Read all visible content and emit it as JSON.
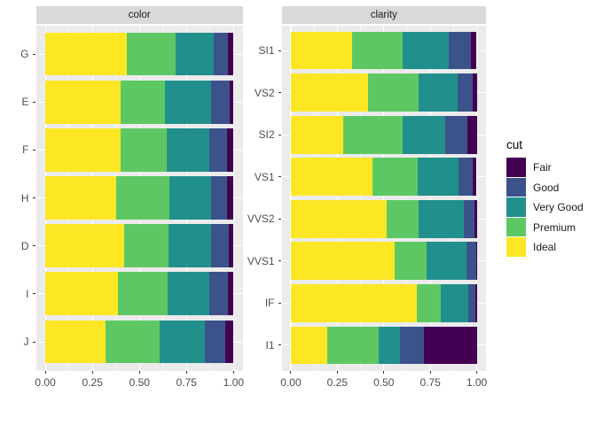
{
  "chart_data": {
    "type": "bar",
    "variant": "horizontal_stacked_fill",
    "x_axis": {
      "tick_values": [
        0,
        0.25,
        0.5,
        0.75,
        1
      ],
      "tick_labels": [
        "0.00",
        "0.25",
        "0.50",
        "0.75",
        "1.00"
      ],
      "range": [
        -0.05,
        1.05
      ],
      "grid": "on",
      "minor_tick_values": [
        0.125,
        0.375,
        0.625,
        0.875
      ]
    },
    "stack_order_left_to_right": [
      "Ideal",
      "Premium",
      "Very Good",
      "Good",
      "Fair"
    ],
    "legend": {
      "title": "cut",
      "position": "right",
      "entries": [
        {
          "label": "Fair",
          "color": "#440154"
        },
        {
          "label": "Good",
          "color": "#3B528B"
        },
        {
          "label": "Very Good",
          "color": "#21908C"
        },
        {
          "label": "Premium",
          "color": "#5DC863"
        },
        {
          "label": "Ideal",
          "color": "#FDE725"
        }
      ]
    },
    "facets": [
      {
        "title": "color",
        "categories": [
          "G",
          "E",
          "F",
          "H",
          "D",
          "I",
          "J"
        ],
        "series": {
          "G": {
            "Ideal": 0.4325,
            "Premium": 0.259,
            "Very Good": 0.2036,
            "Good": 0.0771,
            "Fair": 0.0278
          },
          "E": {
            "Ideal": 0.3984,
            "Premium": 0.2385,
            "Very Good": 0.245,
            "Good": 0.0952,
            "Fair": 0.0229
          },
          "F": {
            "Ideal": 0.401,
            "Premium": 0.2443,
            "Very Good": 0.2268,
            "Good": 0.0953,
            "Fair": 0.0327
          },
          "H": {
            "Ideal": 0.3751,
            "Premium": 0.2842,
            "Very Good": 0.2197,
            "Good": 0.0845,
            "Fair": 0.0365
          },
          "D": {
            "Ideal": 0.4183,
            "Premium": 0.2366,
            "Very Good": 0.2233,
            "Good": 0.0977,
            "Fair": 0.0241
          },
          "I": {
            "Ideal": 0.386,
            "Premium": 0.2634,
            "Very Good": 0.2221,
            "Good": 0.0963,
            "Fair": 0.0323
          },
          "J": {
            "Ideal": 0.3191,
            "Premium": 0.2877,
            "Very Good": 0.2414,
            "Good": 0.1093,
            "Fair": 0.0424
          }
        }
      },
      {
        "title": "clarity",
        "categories": [
          "SI1",
          "VS2",
          "SI2",
          "VS1",
          "VVS2",
          "VVS1",
          "IF",
          "I1"
        ],
        "series": {
          "SI1": {
            "Ideal": 0.3277,
            "Premium": 0.2736,
            "Very Good": 0.248,
            "Good": 0.1194,
            "Fair": 0.0312
          },
          "VS2": {
            "Ideal": 0.4137,
            "Premium": 0.2739,
            "Very Good": 0.2114,
            "Good": 0.0798,
            "Fair": 0.0213
          },
          "SI2": {
            "Ideal": 0.2826,
            "Premium": 0.3208,
            "Very Good": 0.2284,
            "Good": 0.1176,
            "Fair": 0.0507
          },
          "VS1": {
            "Ideal": 0.4392,
            "Premium": 0.2434,
            "Very Good": 0.2172,
            "Good": 0.0793,
            "Fair": 0.0208
          },
          "VVS2": {
            "Ideal": 0.5144,
            "Premium": 0.1717,
            "Very Good": 0.2438,
            "Good": 0.0565,
            "Fair": 0.0136
          },
          "VVS1": {
            "Ideal": 0.5601,
            "Premium": 0.1685,
            "Very Good": 0.2159,
            "Good": 0.0509,
            "Fair": 0.0047
          },
          "IF": {
            "Ideal": 0.6771,
            "Premium": 0.1285,
            "Very Good": 0.1497,
            "Good": 0.0397,
            "Fair": 0.005
          },
          "I1": {
            "Ideal": 0.197,
            "Premium": 0.2767,
            "Very Good": 0.1134,
            "Good": 0.1296,
            "Fair": 0.2834
          }
        }
      }
    ],
    "theme": {
      "panel_bg": "#EBEBEB",
      "strip_bg": "#D9D9D9",
      "grid_major": "#FFFFFF",
      "axis_text": "#4D4D4D",
      "strip_text": "#1A1A1A",
      "tick_mark": "#333333",
      "background": "#FFFFFF"
    }
  }
}
